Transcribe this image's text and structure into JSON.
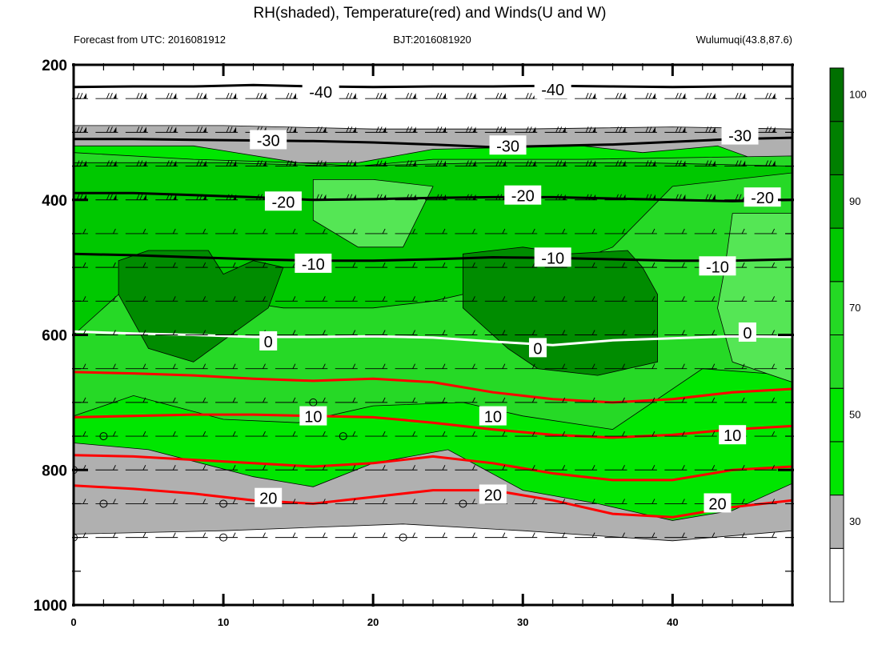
{
  "chart_data": {
    "type": "contour",
    "title": "RH(shaded), Temperature(red) and Winds(U and W)",
    "subtitle_left": "Forecast from UTC: 2016081912",
    "subtitle_center": "BJT:2016081920",
    "subtitle_right": "Wulumuqi(43.8,87.6)",
    "xlabel": "",
    "ylabel": "",
    "xlim": [
      0,
      48
    ],
    "ylim": [
      1000,
      200
    ],
    "x_ticks": [
      0,
      10,
      20,
      30,
      40
    ],
    "x_minor_step": 2,
    "y_ticks": [
      200,
      400,
      600,
      800,
      1000
    ],
    "y_minor_step": 50,
    "grid": false,
    "colorbar": {
      "ticks": [
        "30",
        "50",
        "70",
        "90",
        "100"
      ],
      "levels": [
        0,
        30,
        40,
        50,
        60,
        70,
        80,
        90,
        95,
        100,
        110
      ],
      "colors": [
        "#ffffff",
        "#b0b0b0",
        "#00e600",
        "#00e600",
        "#24d924",
        "#24d924",
        "#00c800",
        "#00a000",
        "#008000",
        "#007000"
      ]
    },
    "legend": "colorbar on right",
    "rh_regions": [
      {
        "level": "30-50",
        "color": "#b0b0b0",
        "points": [
          [
            0,
            290
          ],
          [
            10,
            290
          ],
          [
            20,
            295
          ],
          [
            30,
            295
          ],
          [
            40,
            292
          ],
          [
            48,
            295
          ],
          [
            48,
            890
          ],
          [
            40,
            905
          ],
          [
            30,
            890
          ],
          [
            22,
            880
          ],
          [
            10,
            890
          ],
          [
            0,
            895
          ]
        ]
      },
      {
        "level": "50-70",
        "color": "#00e600",
        "points": [
          [
            0,
            320
          ],
          [
            8,
            320
          ],
          [
            15,
            345
          ],
          [
            19,
            345
          ],
          [
            24,
            325
          ],
          [
            34,
            320
          ],
          [
            38,
            330
          ],
          [
            43,
            320
          ],
          [
            48,
            360
          ],
          [
            48,
            820
          ],
          [
            44,
            860
          ],
          [
            40,
            875
          ],
          [
            35,
            850
          ],
          [
            30,
            830
          ],
          [
            25,
            770
          ],
          [
            20,
            790
          ],
          [
            16,
            825
          ],
          [
            12,
            810
          ],
          [
            5,
            770
          ],
          [
            0,
            760
          ]
        ]
      },
      {
        "level": "70-80",
        "color": "#26d926",
        "points": [
          [
            0,
            330
          ],
          [
            8,
            340
          ],
          [
            15,
            345
          ],
          [
            19,
            350
          ],
          [
            24,
            340
          ],
          [
            34,
            340
          ],
          [
            48,
            335
          ],
          [
            48,
            660
          ],
          [
            42,
            650
          ],
          [
            36,
            740
          ],
          [
            30,
            720
          ],
          [
            26,
            700
          ],
          [
            20,
            705
          ],
          [
            15,
            730
          ],
          [
            10,
            725
          ],
          [
            4,
            690
          ],
          [
            0,
            720
          ]
        ]
      },
      {
        "level": "80-90",
        "color": "#00c800",
        "points": [
          [
            0,
            345
          ],
          [
            10,
            345
          ],
          [
            18,
            350
          ],
          [
            28,
            345
          ],
          [
            38,
            345
          ],
          [
            48,
            350
          ],
          [
            48,
            360
          ],
          [
            44,
            370
          ],
          [
            40,
            380
          ],
          [
            36,
            470
          ],
          [
            30,
            520
          ],
          [
            24,
            550
          ],
          [
            20,
            560
          ],
          [
            14,
            560
          ],
          [
            8,
            540
          ],
          [
            4,
            520
          ],
          [
            0,
            600
          ]
        ]
      },
      {
        "level": "lighter 70-80 band",
        "color": "#55e655",
        "points": [
          [
            16,
            370
          ],
          [
            20,
            370
          ],
          [
            24,
            380
          ],
          [
            22,
            470
          ],
          [
            19,
            470
          ],
          [
            16,
            430
          ]
        ]
      },
      {
        "level": "lighter right band",
        "color": "#55e655",
        "points": [
          [
            44,
            420
          ],
          [
            48,
            420
          ],
          [
            48,
            670
          ],
          [
            44,
            640
          ],
          [
            43,
            560
          ],
          [
            43.5,
            500
          ]
        ]
      },
      {
        "level": "90-95",
        "color": "#008c00",
        "points": [
          [
            3,
            490
          ],
          [
            5,
            475
          ],
          [
            9,
            475
          ],
          [
            10,
            510
          ],
          [
            12,
            490
          ],
          [
            14,
            500
          ],
          [
            13,
            560
          ],
          [
            8,
            640
          ],
          [
            5,
            620
          ],
          [
            3,
            540
          ]
        ]
      },
      {
        "level": "90-95",
        "color": "#008c00",
        "points": [
          [
            26,
            480
          ],
          [
            30,
            470
          ],
          [
            33,
            480
          ],
          [
            37,
            475
          ],
          [
            38,
            500
          ],
          [
            39,
            540
          ],
          [
            39,
            640
          ],
          [
            35,
            660
          ],
          [
            31,
            650
          ],
          [
            29,
            620
          ],
          [
            26,
            560
          ]
        ]
      }
    ],
    "temperature_contours": [
      {
        "label": "-40",
        "color": "#000000",
        "label_pos": [
          [
            16.5,
            240
          ],
          [
            32,
            237
          ]
        ],
        "y": [
          233,
          232,
          232,
          230,
          232,
          233,
          232,
          232,
          231,
          232,
          233,
          232,
          232
        ]
      },
      {
        "label": "-30",
        "color": "#000000",
        "label_pos": [
          [
            13,
            312
          ],
          [
            29,
            320
          ],
          [
            44.5,
            305
          ]
        ],
        "y": [
          310,
          310,
          311,
          312,
          313,
          315,
          318,
          322,
          320,
          318,
          314,
          310,
          308
        ]
      },
      {
        "label": "-20",
        "color": "#000000",
        "label_pos": [
          [
            14,
            403
          ],
          [
            30,
            394
          ],
          [
            46,
            397
          ]
        ],
        "y": [
          390,
          390,
          393,
          396,
          400,
          399,
          397,
          396,
          396,
          398,
          400,
          402,
          400
        ]
      },
      {
        "label": "-10",
        "color": "#000000",
        "label_pos": [
          [
            16,
            495
          ],
          [
            32,
            486
          ],
          [
            43,
            499
          ]
        ],
        "y": [
          480,
          482,
          485,
          488,
          490,
          490,
          488,
          485,
          486,
          488,
          490,
          490,
          488
        ]
      },
      {
        "label": "0",
        "color": "#ffffff",
        "label_pos": [
          [
            13,
            610
          ],
          [
            31,
            620
          ],
          [
            45,
            597
          ]
        ],
        "y": [
          595,
          598,
          600,
          603,
          603,
          602,
          604,
          610,
          615,
          608,
          605,
          602,
          603
        ]
      },
      {
        "label": "10",
        "color": "#ff0000",
        "label_pos": [
          [
            16,
            721
          ],
          [
            28,
            721
          ],
          [
            44,
            749
          ]
        ],
        "y": [
          655,
          657,
          660,
          665,
          668,
          665,
          670,
          685,
          695,
          700,
          695,
          685,
          680
        ]
      },
      {
        "label": "10",
        "color": "#ff0000",
        "label_pos": [],
        "y": [
          722,
          720,
          718,
          718,
          720,
          722,
          730,
          740,
          748,
          752,
          748,
          740,
          735
        ]
      },
      {
        "label": "20",
        "color": "#ff0000",
        "label_pos": [
          [
            13,
            842
          ],
          [
            28,
            837
          ],
          [
            43,
            850
          ]
        ],
        "y": [
          778,
          780,
          785,
          790,
          795,
          790,
          780,
          790,
          805,
          815,
          815,
          800,
          795
        ]
      },
      {
        "label": "20",
        "color": "#ff0000",
        "label_pos": [],
        "y": [
          823,
          828,
          835,
          845,
          850,
          840,
          830,
          830,
          845,
          865,
          870,
          855,
          845
        ]
      }
    ],
    "wind_levels": [
      250,
      300,
      350,
      400,
      450,
      500,
      550,
      600,
      650,
      700,
      750,
      800,
      850,
      900
    ],
    "calm_markers": [
      [
        0,
        800
      ],
      [
        2,
        750
      ],
      [
        2,
        850
      ],
      [
        10,
        850
      ],
      [
        16,
        700
      ],
      [
        18,
        750
      ],
      [
        0,
        900
      ],
      [
        10,
        900
      ],
      [
        22,
        900
      ],
      [
        26,
        850
      ]
    ]
  }
}
